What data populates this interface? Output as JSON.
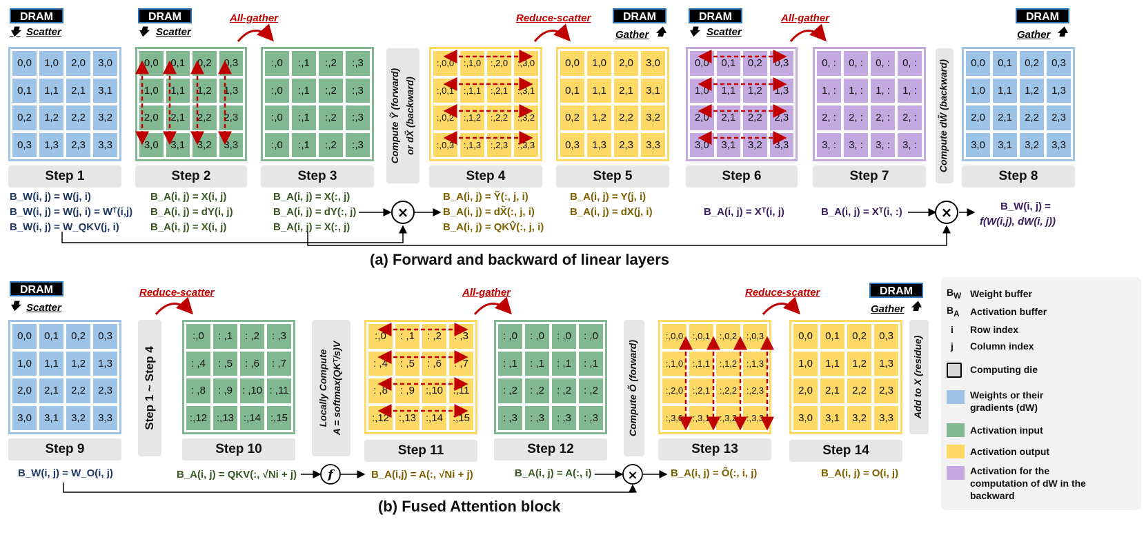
{
  "dram_label": "DRAM",
  "ops": {
    "scatter": "Scatter",
    "gather": "Gather"
  },
  "collectives": {
    "all_gather": "All-gather",
    "reduce_scatter": "Reduce-scatter"
  },
  "steps": [
    "Step 1",
    "Step 2",
    "Step 3",
    "Step 4",
    "Step 5",
    "Step 6",
    "Step 7",
    "Step 8",
    "Step 9",
    "Step 10",
    "Step 11",
    "Step 12",
    "Step 13",
    "Step 14"
  ],
  "grids": {
    "g1": [
      "0,0",
      "1,0",
      "2,0",
      "3,0",
      "0,1",
      "1,1",
      "2,1",
      "3,1",
      "0,2",
      "1,2",
      "2,2",
      "3,2",
      "0,3",
      "1,3",
      "2,3",
      "3,3"
    ],
    "g2": [
      "0,0",
      "0,1",
      "0,2",
      "0,3",
      "1,0",
      "1,1",
      "1,2",
      "1,3",
      "2,0",
      "2,1",
      "2,2",
      "2,3",
      "3,0",
      "3,1",
      "3,2",
      "3,3"
    ],
    "g3": [
      ":,0",
      ":,1",
      ":,2",
      ":,3",
      ":,0",
      ":,1",
      ":,2",
      ":,3",
      ":,0",
      ":,1",
      ":,2",
      ":,3",
      ":,0",
      ":,1",
      ":,2",
      ":,3"
    ],
    "g4": [
      ":,0,0",
      ":,1,0",
      ":,2,0",
      ":,3,0",
      ":,0,1",
      ":,1,1",
      ":,2,1",
      ":,3,1",
      ":,0,2",
      ":,1,2",
      ":,2,2",
      ":,3,2",
      ":,0,3",
      ":,1,3",
      ":,2,3",
      ":,3,3"
    ],
    "g5": [
      "0,0",
      "1,0",
      "2,0",
      "3,0",
      "0,1",
      "1,1",
      "2,1",
      "3,1",
      "0,2",
      "1,2",
      "2,2",
      "3,2",
      "0,3",
      "1,3",
      "2,3",
      "3,3"
    ],
    "g6": [
      "0,0",
      "0,1",
      "0,2",
      "0,3",
      "1,0",
      "1,1",
      "1,2",
      "1,3",
      "2,0",
      "2,1",
      "2,2",
      "2,3",
      "3,0",
      "3,1",
      "3,2",
      "3,3"
    ],
    "g7": [
      "0, :",
      "0, :",
      "0, :",
      "0, :",
      "1, :",
      "1, :",
      "1, :",
      "1, :",
      "2, :",
      "2, :",
      "2, :",
      "2, :",
      "3, :",
      "3, :",
      "3, :",
      "3, :"
    ],
    "g8": [
      "0,0",
      "0,1",
      "0,2",
      "0,3",
      "1,0",
      "1,1",
      "1,2",
      "1,3",
      "2,0",
      "2,1",
      "2,2",
      "2,3",
      "3,0",
      "3,1",
      "3,2",
      "3,3"
    ],
    "g9": [
      "0,0",
      "0,1",
      "0,2",
      "0,3",
      "1,0",
      "1,1",
      "1,2",
      "1,3",
      "2,0",
      "2,1",
      "2,2",
      "2,3",
      "3,0",
      "3,1",
      "3,2",
      "3,3"
    ],
    "g10": [
      ":,0",
      ": ,1",
      ": ,2",
      ": ,3",
      ": ,4",
      ": ,5",
      ": ,6",
      ": ,7",
      ": ,8",
      ": ,9",
      ": ,10",
      ": ,11",
      ":,12",
      ":,13",
      ":,14",
      ":,15"
    ],
    "g11": [
      ":,0",
      ": ,1",
      ": ,2",
      ": ,3",
      ": ,4",
      ": ,5",
      ": ,6",
      ": ,7",
      ": ,8",
      ": ,9",
      ":,10",
      ":,11",
      ":,12",
      ":,13",
      ":,14",
      ":,15"
    ],
    "g12": [
      ": ,0",
      ": ,0",
      ": ,0",
      ": ,0",
      ": ,1",
      ": ,1",
      ": ,1",
      ": ,1",
      ": ,2",
      ": ,2",
      ": ,2",
      ": ,2",
      ": ,3",
      ": ,3",
      ": ,3",
      ": ,3"
    ],
    "g13": [
      ":,0,0",
      ":,0,1",
      ":,0,2",
      ":,0,3",
      ":,1,0",
      ":,1,1",
      ":,1,2",
      ":,1,3",
      ":,2,0",
      ":,2,1",
      ":,2,2",
      ":,2,3",
      ":,3,0",
      ":,3,1",
      ":,3,2",
      ":,3,3"
    ],
    "g14": [
      "0,0",
      "0,1",
      "0,2",
      "0,3",
      "1,0",
      "1,1",
      "1,2",
      "1,3",
      "2,0",
      "2,1",
      "2,2",
      "2,3",
      "3,0",
      "3,1",
      "3,2",
      "3,3"
    ]
  },
  "vertical_labels": {
    "compute_a": "Compute Ỹ (forward)",
    "compute_b": "or dX̃ (backward)",
    "compute_dw": "Compute dW̃ (backward)",
    "step1to4": "Step 1 ~ Step 4",
    "local_a": "Locally Compute",
    "local_b": "A = softmax(QKᵀ/s)V",
    "compute_o": "Compute Õ (forward)",
    "add_x": "Add to X (residue)"
  },
  "equations": {
    "s1": [
      "B_W(i, j) = W(j, i)",
      "B_W(i, j) = W(j, i) = Wᵀ(i,j)",
      "B_W(i, j) = W_QKV(j, i)"
    ],
    "s2": [
      "B_A(i, j) = X(i, j)",
      "B_A(i, j) = dY(i, j)",
      "B_A(i, j) = X(i, j)"
    ],
    "s3": [
      "B_A(i, j) = X(:, j)",
      "B_A(i, j) = dY(:, j)",
      "B_A(i, j) = X(:, j)"
    ],
    "s4": [
      "B_A(i, j) = Ỹ(:, j, i)",
      "B_A(i, j) = dX̃(:, j, i)",
      "B_A(i, j) = QKV̂(:, j, i)"
    ],
    "s5": [
      "B_A(i, j) = Y(j, i)",
      "B_A(i, j) = dX(j, i)"
    ],
    "s6": "B_A(i, j) = Xᵀ(i, j)",
    "s7": "B_A(i, j) = Xᵀ(i, :)",
    "s8": [
      "B_W(i, j) =",
      "f(W(i,j), dW(i, j))"
    ],
    "s9": "B_W(i, j) = W_O(i, j)",
    "s10": "B_A(i, j) = QKV(:, √Ni + j)",
    "s11": "B_A(i,j) = A(:, √Ni + j)",
    "s12": "B_A(i, j) = A(:, i)",
    "s13": "B_A(i, j) = Õ(:, i, j)",
    "s14": "B_A(i, j) = O(i, j)"
  },
  "symbols": {
    "times": "×",
    "f": "f"
  },
  "captions": {
    "a": "(a) Forward and backward of linear layers",
    "b": "(b) Fused Attention block"
  },
  "legend": [
    {
      "sym": "B_W",
      "text": "Weight buffer"
    },
    {
      "sym": "B_A",
      "text": "Activation buffer"
    },
    {
      "sym": "i",
      "text": "Row index"
    },
    {
      "sym": "j",
      "text": "Column index"
    },
    {
      "sym": "box",
      "text": "Computing die"
    },
    {
      "sym": "#9dc3e6",
      "text": "Weights or their gradients (dW)"
    },
    {
      "sym": "#82b891",
      "text": "Activation input"
    },
    {
      "sym": "#ffd966",
      "text": "Activation output"
    },
    {
      "sym": "#c4a8e0",
      "text": "Activation for the computation of dW in the backward"
    }
  ],
  "colors": {
    "weights": "#9dc3e6",
    "activation_input": "#82b891",
    "activation_output": "#ffd966",
    "activation_dw": "#c4a8e0",
    "collective": "#c00000"
  }
}
